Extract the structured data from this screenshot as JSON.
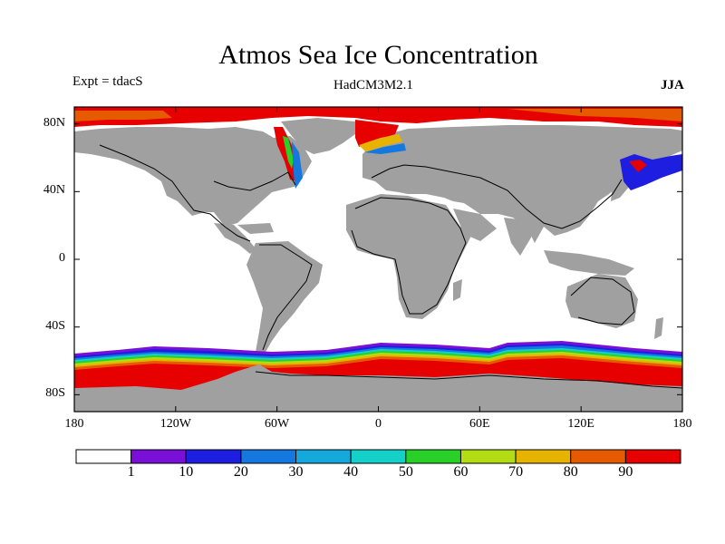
{
  "title": "Atmos Sea Ice Concentration",
  "experiment": "Expt = tdacS",
  "model": "HadCM3M2.1",
  "season": "JJA",
  "lat_ticks": [
    {
      "label": "80N",
      "value": 80
    },
    {
      "label": "40N",
      "value": 40
    },
    {
      "label": "0",
      "value": 0
    },
    {
      "label": "40S",
      "value": -40
    },
    {
      "label": "80S",
      "value": -80
    }
  ],
  "lon_ticks": [
    {
      "label": "180",
      "value": -180
    },
    {
      "label": "120W",
      "value": -120
    },
    {
      "label": "60W",
      "value": -60
    },
    {
      "label": "0",
      "value": 0
    },
    {
      "label": "60E",
      "value": 60
    },
    {
      "label": "120E",
      "value": 120
    },
    {
      "label": "180",
      "value": 180
    }
  ],
  "colorbar": {
    "boundaries": [
      "1",
      "10",
      "20",
      "30",
      "40",
      "50",
      "60",
      "70",
      "80",
      "90"
    ],
    "colors": [
      "#ffffff",
      "#7a10d8",
      "#1e1ee0",
      "#1478e0",
      "#14a8dc",
      "#14d0c8",
      "#28d028",
      "#b4dc14",
      "#e6b400",
      "#e65a00",
      "#e60000"
    ]
  },
  "colors": {
    "land": "#a0a0a0",
    "ocean": "#ffffff",
    "coast": "#000000"
  }
}
